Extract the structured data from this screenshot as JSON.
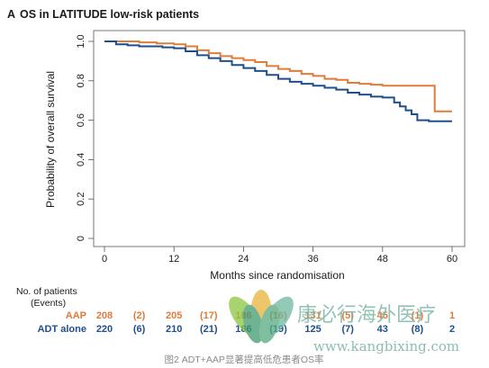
{
  "chart_data": {
    "type": "line",
    "panel_letter": "A",
    "title": "OS in LATITUDE low-risk patients",
    "xlabel": "Months since randomisation",
    "ylabel": "Probability of overall survival",
    "xlim": [
      0,
      60
    ],
    "ylim": [
      0,
      1.0
    ],
    "x_ticks": [
      0,
      12,
      24,
      36,
      48,
      60
    ],
    "y_ticks": [
      0,
      0.2,
      0.4,
      0.6,
      0.8,
      1.0
    ],
    "y_tick_labels": [
      "0",
      "0.2",
      "0.4",
      "0.6",
      "0.8",
      "1.0"
    ],
    "series": [
      {
        "name": "AAP",
        "color": "#e07b39",
        "x": [
          0,
          3,
          6,
          9,
          12,
          14,
          16,
          18,
          20,
          22,
          24,
          26,
          28,
          30,
          32,
          34,
          36,
          38,
          40,
          42,
          44,
          46,
          48,
          50,
          52,
          54,
          56,
          57,
          58,
          60
        ],
        "y": [
          1.0,
          1.0,
          0.995,
          0.99,
          0.985,
          0.975,
          0.955,
          0.94,
          0.925,
          0.915,
          0.905,
          0.895,
          0.875,
          0.86,
          0.85,
          0.835,
          0.825,
          0.81,
          0.805,
          0.79,
          0.785,
          0.78,
          0.775,
          0.775,
          0.775,
          0.775,
          0.775,
          0.645,
          0.645,
          0.645
        ]
      },
      {
        "name": "ADT alone",
        "color": "#1f4e8c",
        "x": [
          0,
          2,
          4,
          6,
          8,
          10,
          12,
          14,
          16,
          18,
          20,
          22,
          24,
          26,
          28,
          30,
          32,
          34,
          36,
          38,
          40,
          42,
          44,
          46,
          48,
          50,
          51,
          52,
          53,
          54,
          56,
          58,
          60
        ],
        "y": [
          1.0,
          0.985,
          0.98,
          0.975,
          0.975,
          0.97,
          0.965,
          0.95,
          0.93,
          0.915,
          0.9,
          0.88,
          0.865,
          0.85,
          0.83,
          0.81,
          0.795,
          0.785,
          0.775,
          0.765,
          0.755,
          0.74,
          0.73,
          0.72,
          0.715,
          0.69,
          0.67,
          0.65,
          0.63,
          0.6,
          0.595,
          0.595,
          0.595
        ]
      }
    ],
    "risk_table": {
      "header_line1": "No. of patients",
      "header_line2": "(Events)",
      "rows": [
        {
          "label": "AAP",
          "color": "#e07b39",
          "values": [
            "208",
            "(2)",
            "205",
            "(17)",
            "186",
            "(16)",
            "131",
            "(5)",
            "45",
            "(1)",
            "1"
          ]
        },
        {
          "label": "ADT alone",
          "color": "#1f4e8c",
          "values": [
            "220",
            "(6)",
            "210",
            "(21)",
            "186",
            "(19)",
            "125",
            "(7)",
            "43",
            "(8)",
            "2"
          ]
        }
      ]
    }
  },
  "watermark": {
    "chinese_text": "康必行海外医疗",
    "url": "www.kangbixing.com"
  },
  "caption": "图2 ADT+AAP显著提高低危患者OS率"
}
